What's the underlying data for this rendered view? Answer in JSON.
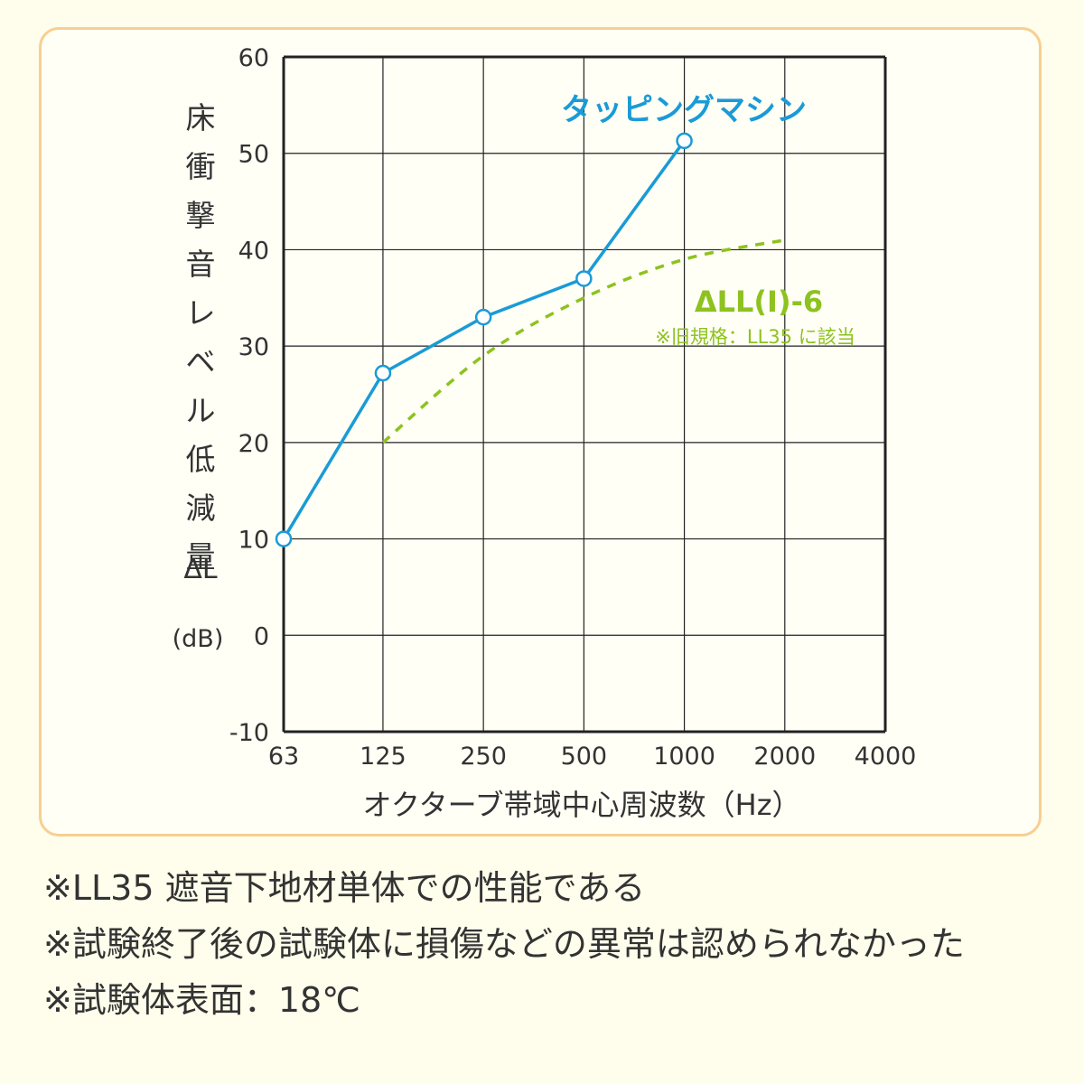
{
  "chart_data": {
    "type": "line",
    "ylabel": "床衝撃音レベル低減量",
    "ylabel_symbol": "ΔL",
    "ylabel_unit": "(dB)",
    "xlabel": "オクターブ帯域中心周波数（Hz）",
    "x_ticks": [
      "63",
      "125",
      "250",
      "500",
      "1000",
      "2000",
      "4000"
    ],
    "y_ticks": [
      "-10",
      "0",
      "10",
      "20",
      "30",
      "40",
      "50",
      "60"
    ],
    "ylim": [
      -10,
      60
    ],
    "x_scale": "log2 octave bands",
    "grid": true,
    "series": [
      {
        "name": "タッピングマシン",
        "color": "#1a9bd7",
        "style": "solid with open circle markers",
        "x": [
          63,
          125,
          250,
          500,
          1000
        ],
        "y": [
          10,
          27.2,
          33,
          37,
          51.3
        ]
      },
      {
        "name": "ΔLL(Ⅰ)-6",
        "note": "※旧規格：LL35 に該当",
        "color": "#8dc21f",
        "style": "dashed",
        "x": [
          125,
          250,
          500,
          1000,
          2000
        ],
        "y": [
          20,
          29,
          35,
          39,
          41
        ]
      }
    ]
  },
  "notes": [
    "※LL35 遮音下地材単体での性能である",
    "※試験終了後の試験体に損傷などの異常は認められなかった",
    "※試験体表面：18℃"
  ]
}
